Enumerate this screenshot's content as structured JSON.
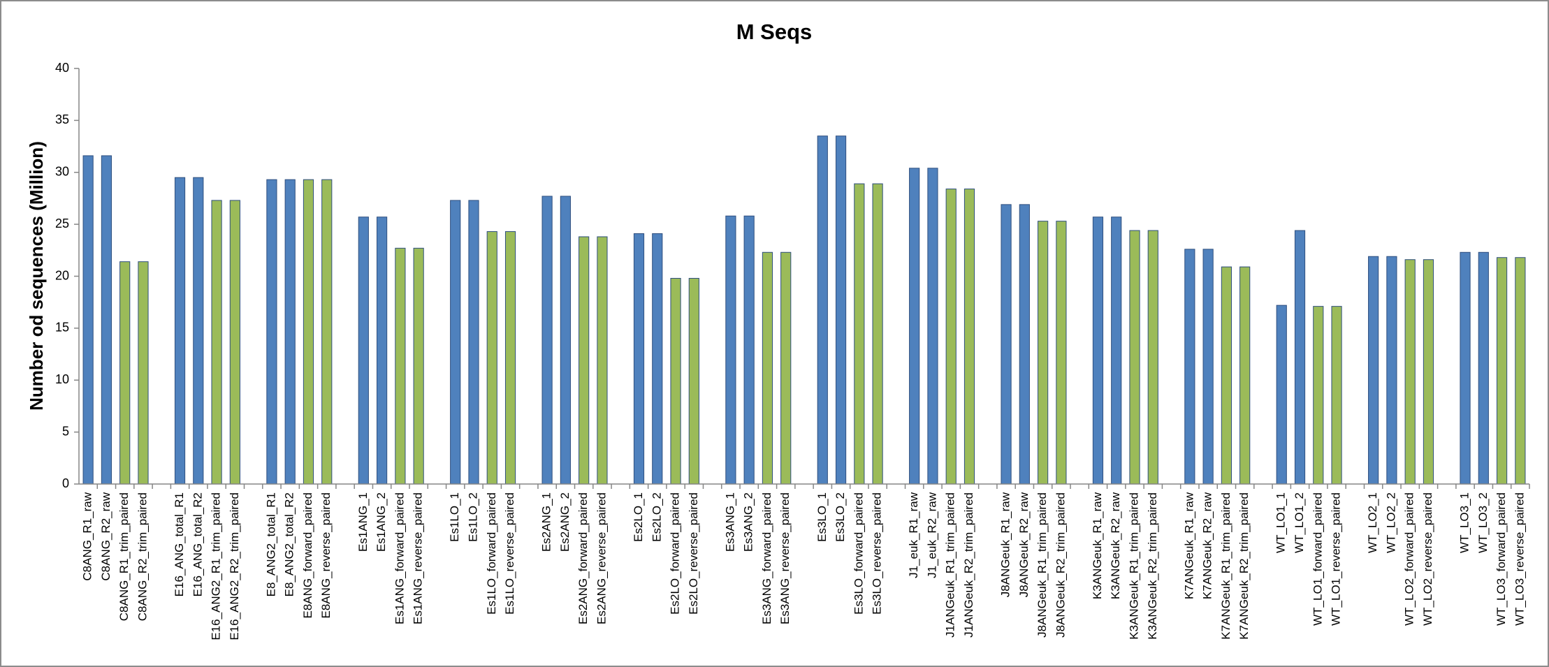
{
  "chart_data": {
    "type": "bar",
    "title": "M Seqs",
    "y_label": "Number od sequences (Million)",
    "categories": [
      "C8ANG_R1_raw",
      "C8ANG_R2_raw",
      "C8ANG_R1_trim_paired",
      "C8ANG_R2_trim_paired",
      null,
      "E16_ANG_total_R1",
      "E16_ANG_total_R2",
      "E16_ANG2_R1_trim_paired",
      "E16_ANG2_R2_trim_paired",
      null,
      "E8_ANG2_total_R1",
      "E8_ANG2_total_R2",
      "E8ANG_forward_paired",
      "E8ANG_reverse_paired",
      null,
      "Es1ANG_1",
      "Es1ANG_2",
      "Es1ANG_forward_paired",
      "Es1ANG_reverse_paired",
      null,
      "Es1LO_1",
      "Es1LO_2",
      "Es1LO_forward_paired",
      "Es1LO_reverse_paired",
      null,
      "Es2ANG_1",
      "Es2ANG_2",
      "Es2ANG_forward_paired",
      "Es2ANG_reverse_paired",
      null,
      "Es2LO_1",
      "Es2LO_2",
      "Es2LO_forward_paired",
      "Es2LO_reverse_paired",
      null,
      "Es3ANG_1",
      "Es3ANG_2",
      "Es3ANG_forward_paired",
      "Es3ANG_reverse_paired",
      null,
      "Es3LO_1",
      "Es3LO_2",
      "Es3LO_forward_paired",
      "Es3LO_reverse_paired",
      null,
      "J1_euk_R1_raw",
      "J1_euk_R2_raw",
      "J1ANGeuk_R1_trim_paired",
      "J1ANGeuk_R2_trim_paired",
      null,
      "J8ANGeuk_R1_raw",
      "J8ANGeuk_R2_raw",
      "J8ANGeuk_R1_trim_paired",
      "J8ANGeuk_R2_trim_paired",
      null,
      "K3ANGeuk_R1_raw",
      "K3ANGeuk_R2_raw",
      "K3ANGeuk_R1_trim_paired",
      "K3ANGeuk_R2_trim_paired",
      null,
      "K7ANGeuk_R1_raw",
      "K7ANGeuk_R2_raw",
      "K7ANGeuk_R1_trim_paired",
      "K7ANGeuk_R2_trim_paired",
      null,
      "WT_LO1_1",
      "WT_LO1_2",
      "WT_LO1_forward_paired",
      "WT_LO1_reverse_paired",
      null,
      "WT_LO2_1",
      "WT_LO2_2",
      "WT_LO2_forward_paired",
      "WT_LO2_reverse_paired",
      null,
      "WT_LO3_1",
      "WT_LO3_2",
      "WT_LO3_forward_paired",
      "WT_LO3_reverse_paired"
    ],
    "values": [
      31.6,
      31.6,
      21.4,
      21.4,
      null,
      29.5,
      29.5,
      27.3,
      27.3,
      null,
      29.3,
      29.3,
      29.3,
      29.3,
      null,
      25.7,
      25.7,
      22.7,
      22.7,
      null,
      27.3,
      27.3,
      24.3,
      24.3,
      null,
      27.7,
      27.7,
      23.8,
      23.8,
      null,
      24.1,
      24.1,
      19.8,
      19.8,
      null,
      25.8,
      25.8,
      22.3,
      22.3,
      null,
      33.5,
      33.5,
      28.9,
      28.9,
      null,
      30.4,
      30.4,
      28.4,
      28.4,
      null,
      26.9,
      26.9,
      25.3,
      25.3,
      null,
      25.7,
      25.7,
      24.4,
      24.4,
      null,
      22.6,
      22.6,
      20.9,
      20.9,
      null,
      17.2,
      24.4,
      17.1,
      17.1,
      null,
      21.9,
      21.9,
      21.6,
      21.6,
      null,
      22.3,
      22.3,
      21.8,
      21.8
    ],
    "colors": [
      "#4f81bd",
      "#4f81bd",
      "#9bbb59",
      "#9bbb59",
      null,
      "#4f81bd",
      "#4f81bd",
      "#9bbb59",
      "#9bbb59",
      null,
      "#4f81bd",
      "#4f81bd",
      "#9bbb59",
      "#9bbb59",
      null,
      "#4f81bd",
      "#4f81bd",
      "#9bbb59",
      "#9bbb59",
      null,
      "#4f81bd",
      "#4f81bd",
      "#9bbb59",
      "#9bbb59",
      null,
      "#4f81bd",
      "#4f81bd",
      "#9bbb59",
      "#9bbb59",
      null,
      "#4f81bd",
      "#4f81bd",
      "#9bbb59",
      "#9bbb59",
      null,
      "#4f81bd",
      "#4f81bd",
      "#9bbb59",
      "#9bbb59",
      null,
      "#4f81bd",
      "#4f81bd",
      "#9bbb59",
      "#9bbb59",
      null,
      "#4f81bd",
      "#4f81bd",
      "#9bbb59",
      "#9bbb59",
      null,
      "#4f81bd",
      "#4f81bd",
      "#9bbb59",
      "#9bbb59",
      null,
      "#4f81bd",
      "#4f81bd",
      "#9bbb59",
      "#9bbb59",
      null,
      "#4f81bd",
      "#4f81bd",
      "#9bbb59",
      "#9bbb59",
      null,
      "#4f81bd",
      "#4f81bd",
      "#9bbb59",
      "#9bbb59",
      null,
      "#4f81bd",
      "#4f81bd",
      "#9bbb59",
      "#9bbb59",
      null,
      "#4f81bd",
      "#4f81bd",
      "#9bbb59",
      "#9bbb59"
    ],
    "ylim": [
      0,
      40
    ],
    "yticks": [
      0,
      5,
      10,
      15,
      20,
      25,
      30,
      35,
      40
    ],
    "grid": false
  }
}
